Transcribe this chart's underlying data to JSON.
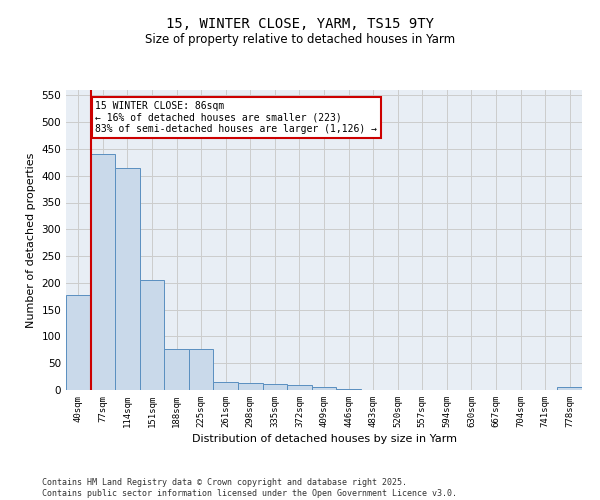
{
  "title1": "15, WINTER CLOSE, YARM, TS15 9TY",
  "title2": "Size of property relative to detached houses in Yarm",
  "xlabel": "Distribution of detached houses by size in Yarm",
  "ylabel": "Number of detached properties",
  "bar_labels": [
    "40sqm",
    "77sqm",
    "114sqm",
    "151sqm",
    "188sqm",
    "225sqm",
    "261sqm",
    "298sqm",
    "335sqm",
    "372sqm",
    "409sqm",
    "446sqm",
    "483sqm",
    "520sqm",
    "557sqm",
    "594sqm",
    "630sqm",
    "667sqm",
    "704sqm",
    "741sqm",
    "778sqm"
  ],
  "bar_values": [
    178,
    440,
    415,
    205,
    77,
    77,
    15,
    13,
    11,
    9,
    5,
    2,
    0,
    0,
    0,
    0,
    0,
    0,
    0,
    0,
    5
  ],
  "bar_color": "#c9d9ea",
  "bar_edge_color": "#5a8fc0",
  "red_line_index": 1,
  "annotation_text": "15 WINTER CLOSE: 86sqm\n← 16% of detached houses are smaller (223)\n83% of semi-detached houses are larger (1,126) →",
  "annotation_box_color": "#ffffff",
  "annotation_box_edge": "#cc0000",
  "ylim": [
    0,
    560
  ],
  "yticks": [
    0,
    50,
    100,
    150,
    200,
    250,
    300,
    350,
    400,
    450,
    500,
    550
  ],
  "grid_color": "#cccccc",
  "background_color": "#e8eef5",
  "footer": "Contains HM Land Registry data © Crown copyright and database right 2025.\nContains public sector information licensed under the Open Government Licence v3.0."
}
